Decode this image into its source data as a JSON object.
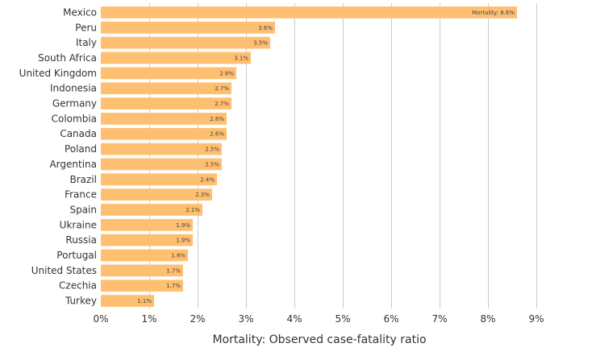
{
  "chart_data": {
    "type": "bar",
    "orientation": "horizontal",
    "categories": [
      "Mexico",
      "Peru",
      "Italy",
      "South Africa",
      "United Kingdom",
      "Indonesia",
      "Germany",
      "Colombia",
      "Canada",
      "Poland",
      "Argentina",
      "Brazil",
      "France",
      "Spain",
      "Ukraine",
      "Russia",
      "Portugal",
      "United States",
      "Czechia",
      "Turkey"
    ],
    "values": [
      8.6,
      3.6,
      3.5,
      3.1,
      2.8,
      2.7,
      2.7,
      2.6,
      2.6,
      2.5,
      2.5,
      2.4,
      2.3,
      2.1,
      1.9,
      1.9,
      1.8,
      1.7,
      1.7,
      1.1
    ],
    "data_labels": [
      "Mortality: 8.6%",
      "3.6%",
      "3.5%",
      "3.1%",
      "2.8%",
      "2.7%",
      "2.7%",
      "2.6%",
      "2.6%",
      "2.5%",
      "2.5%",
      "2.4%",
      "2.3%",
      "2.1%",
      "1.9%",
      "1.9%",
      "1.8%",
      "1.7%",
      "1.7%",
      "1.1%"
    ],
    "xlabel": "Mortality: Observed case-fatality ratio",
    "ylabel": "",
    "xlim": [
      0,
      9
    ],
    "x_ticks": [
      0,
      1,
      2,
      3,
      4,
      5,
      6,
      7,
      8,
      9
    ],
    "x_tick_labels": [
      "0%",
      "1%",
      "2%",
      "3%",
      "4%",
      "5%",
      "6%",
      "7%",
      "8%",
      "9%"
    ],
    "grid": "vertical",
    "legend": "none",
    "bar_color": "#ffbf70"
  }
}
